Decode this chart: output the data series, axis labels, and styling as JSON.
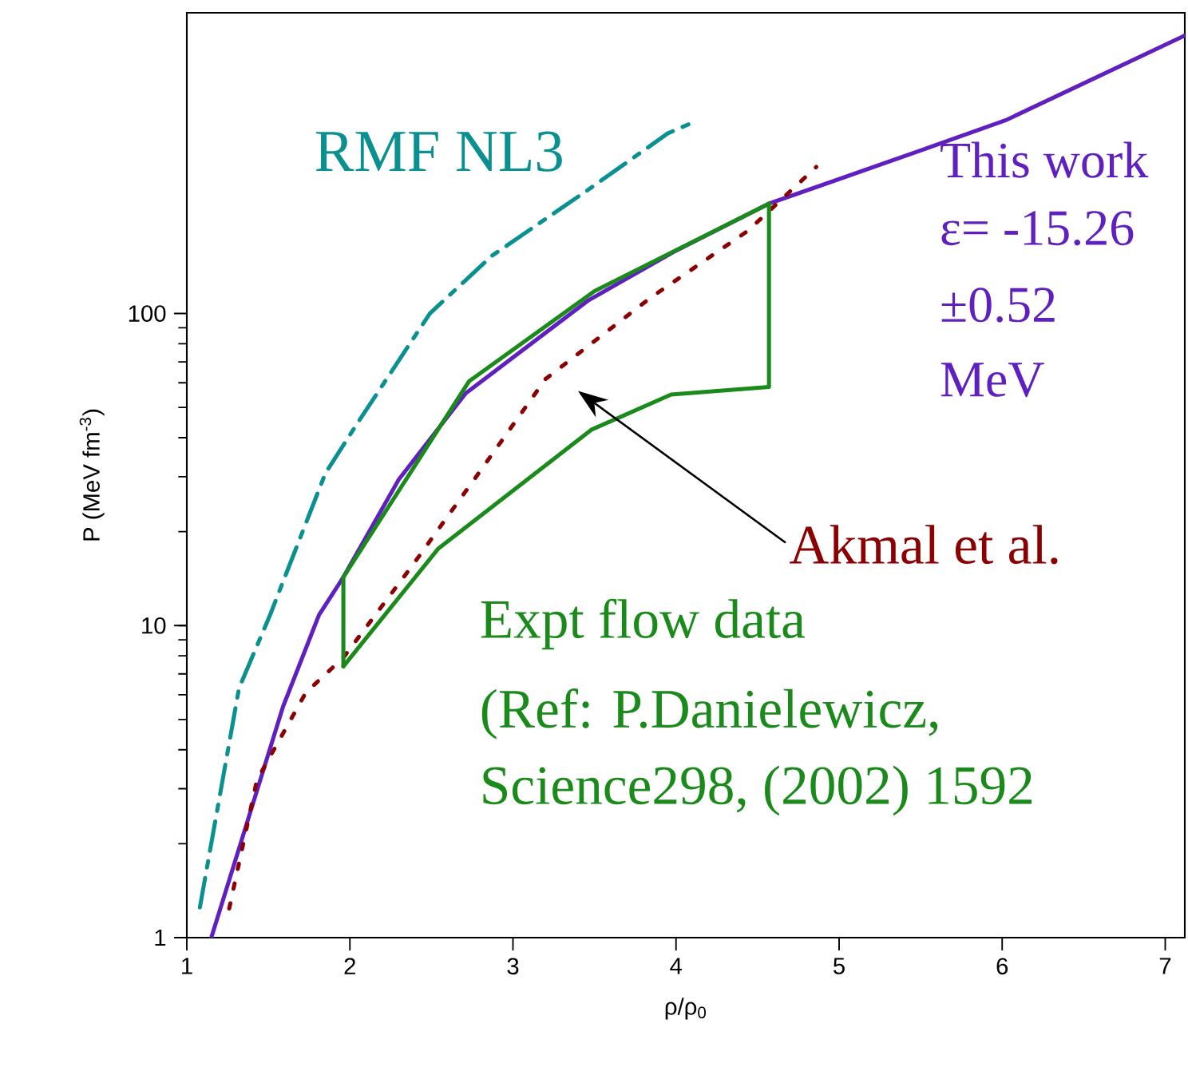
{
  "chart_data": {
    "type": "line",
    "xlabel": "ρ/ρ$_{0}$",
    "ylabel": "P (MeV fm$^{-3}$)",
    "xlim": [
      1,
      7.12
    ],
    "xticks": [
      1,
      2,
      3,
      4,
      5,
      6,
      7
    ],
    "ylim": [
      1,
      920
    ],
    "yticks": [
      1,
      10,
      100
    ],
    "log": "y",
    "legend": false,
    "marker": "none",
    "series": [
      {
        "name": "This work",
        "color": "#6020c0",
        "line_style": "solid",
        "x": [
          1.15,
          1.32,
          1.59,
          1.81,
          1.96,
          2.3,
          2.71,
          3.46,
          3.98,
          4.57,
          5.5,
          6.02,
          7.12
        ],
        "values": [
          1,
          1.93,
          5.5,
          10.8,
          14.3,
          29.4,
          55.5,
          110,
          157,
          225,
          333,
          416,
          778
        ]
      },
      {
        "name": "RMF NL3",
        "color": "#0a9090",
        "line_style": "dashed",
        "x": [
          1.08,
          1.32,
          1.51,
          1.85,
          2.04,
          2.49,
          2.87,
          3.46,
          3.95,
          4.11
        ],
        "values": [
          1.25,
          6.3,
          10.8,
          30.8,
          44,
          100,
          153,
          249,
          378,
          411
        ]
      },
      {
        "name": "Akmal et al.",
        "color": "#8b0000",
        "line_style": "dotted",
        "x": [
          1.26,
          1.43,
          1.73,
          1.96,
          2.38,
          2.79,
          3.2,
          3.84,
          4.44,
          4.86
        ],
        "values": [
          1.24,
          3.2,
          6.1,
          7.9,
          15.5,
          30.8,
          61.7,
          112,
          184,
          295
        ]
      },
      {
        "name": "Expt flow data",
        "color": "#1a8a1a",
        "line_style": "solid",
        "x": [
          1.96,
          1.96,
          2.73,
          3.5,
          4.57
        ],
        "values": [
          7.4,
          14.3,
          60.6,
          118,
          225
        ]
      },
      {
        "color": "#1a8a1a",
        "line_style": "solid",
        "x": [
          1.96,
          2.54,
          3.48,
          3.97,
          4.57,
          4.57
        ],
        "values": [
          7.4,
          17.6,
          42.4,
          55,
          58.2,
          225
        ]
      }
    ],
    "annotations": [
      "ε= -15.26",
      "±0.52",
      "MeV",
      "(Ref: P.Danielewicz,",
      "Science298, (2002) 1592"
    ]
  }
}
